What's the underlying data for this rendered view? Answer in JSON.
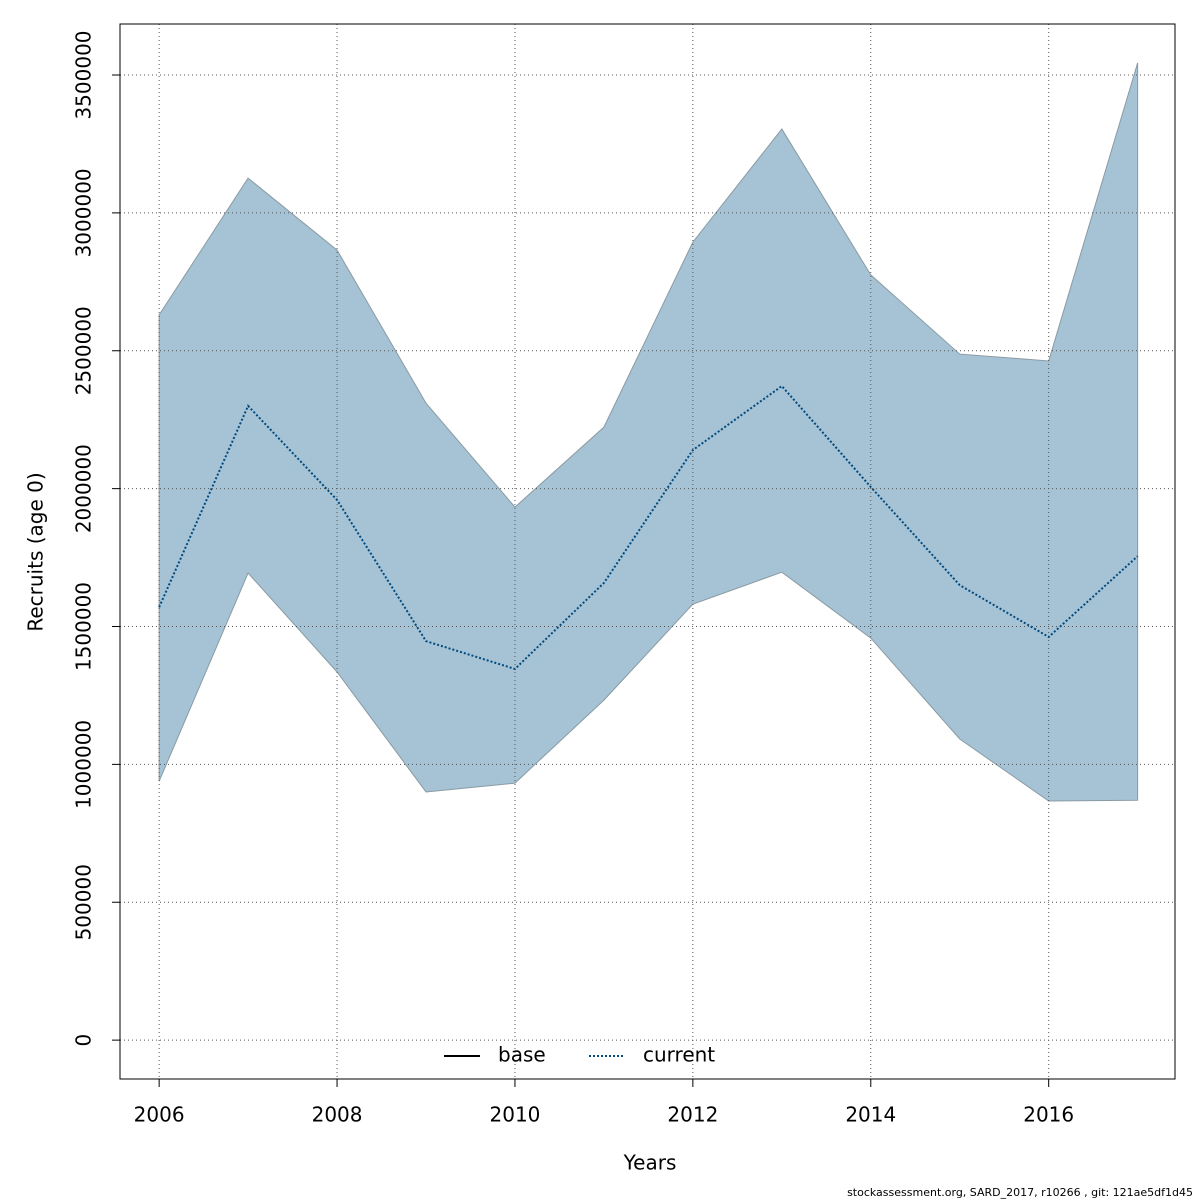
{
  "chart_data": {
    "type": "line",
    "x": [
      2006,
      2007,
      2008,
      2009,
      2010,
      2011,
      2012,
      2013,
      2014,
      2015,
      2016,
      2017
    ],
    "band": {
      "color": "#a5c3d4",
      "upper": [
        2630000,
        3126000,
        2865000,
        2310000,
        1933000,
        2223000,
        2894000,
        3304000,
        2775000,
        2488000,
        2463000,
        3544000
      ],
      "lower": [
        939000,
        1694000,
        1335000,
        900000,
        932000,
        1233000,
        1581000,
        1697000,
        1458000,
        1092000,
        867000,
        870000
      ]
    },
    "series": [
      {
        "name": "base",
        "color": "#000000"
      },
      {
        "name": "current",
        "color": "#004a80",
        "values": [
          1570000,
          2300000,
          1959000,
          1447000,
          1346000,
          1658000,
          2140000,
          2372000,
          2006000,
          1650000,
          1462000,
          1755000
        ]
      }
    ],
    "x_label": "Years",
    "y_label": "Recruits (age 0)",
    "xlim": [
      2005.56,
      2017.42
    ],
    "ylim": [
      -141000,
      3685000
    ],
    "xticks": [
      2006,
      2008,
      2010,
      2012,
      2014,
      2016
    ],
    "yticks": [
      0,
      500000,
      1000000,
      1500000,
      2000000,
      2500000,
      3000000,
      3500000
    ],
    "grid": true,
    "legend": "bottom",
    "footer": "stockassessment.org, SARD_2017, r10266 , git: 121ae5df1d45"
  }
}
